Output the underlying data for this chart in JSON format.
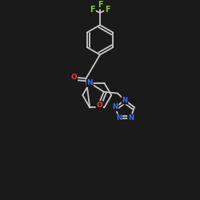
{
  "bg_color": "#1a1a1a",
  "bond_color": "#c8c8c8",
  "atom_colors": {
    "N": "#4466ff",
    "O": "#ff3333",
    "F": "#88cc22"
  },
  "font_size": 6.5,
  "lw": 1.3
}
